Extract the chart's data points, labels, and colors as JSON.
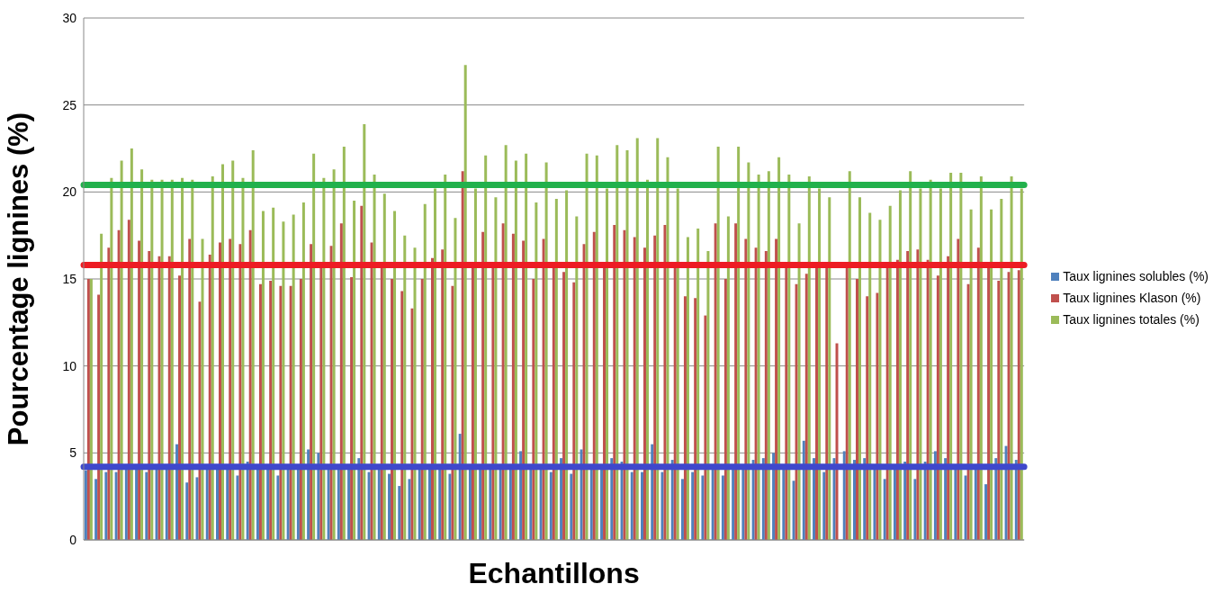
{
  "chart_data": {
    "type": "bar",
    "xlabel": "Echantillons",
    "ylabel": "Pourcentage lignines (%)",
    "categories": [
      null,
      null,
      null,
      null,
      null,
      null,
      null,
      null,
      null,
      null,
      null,
      null,
      null,
      null,
      null,
      null,
      null,
      null,
      null,
      null,
      null,
      null,
      null,
      null,
      null,
      null,
      null,
      null,
      null,
      null,
      null,
      null,
      null,
      null,
      null,
      null,
      null,
      null,
      null,
      null,
      null,
      null,
      null,
      null,
      null,
      null,
      null,
      null,
      null,
      null,
      null,
      null,
      null,
      null,
      null,
      null,
      null,
      null,
      null,
      null,
      null,
      null,
      null,
      null,
      null,
      null,
      null,
      null,
      null,
      null,
      null,
      null,
      null,
      null,
      null,
      null,
      null,
      null,
      null,
      null,
      null,
      null,
      null,
      null,
      null,
      null,
      null,
      null,
      null,
      null,
      null,
      null,
      null
    ],
    "series": [
      {
        "name": "Taux lignines solubles (%)",
        "color": "#4f81bd",
        "values": [
          4.0,
          3.5,
          3.9,
          3.9,
          4.2,
          4.2,
          3.9,
          4.2,
          4.2,
          5.5,
          3.3,
          3.6,
          4.1,
          4.2,
          4.2,
          3.7,
          4.5,
          4.2,
          4.2,
          3.7,
          4.2,
          4.2,
          5.2,
          5.0,
          4.2,
          4.2,
          4.2,
          4.7,
          3.9,
          4.2,
          3.8,
          3.1,
          3.5,
          4.2,
          4.2,
          4.2,
          3.8,
          6.1,
          4.2,
          4.2,
          4.2,
          4.2,
          4.2,
          5.1,
          4.2,
          4.2,
          3.9,
          4.7,
          3.8,
          5.2,
          4.2,
          4.2,
          4.7,
          4.5,
          3.9,
          3.9,
          5.5,
          3.9,
          4.6,
          3.5,
          3.9,
          3.7,
          4.2,
          3.7,
          4.2,
          4.2,
          4.6,
          4.7,
          5.0,
          4.2,
          3.4,
          5.7,
          4.7,
          3.9,
          4.7,
          5.1,
          4.6,
          4.7,
          4.2,
          3.5,
          4.2,
          4.5,
          3.5,
          4.5,
          5.1,
          4.7,
          4.2,
          3.7,
          4.2,
          3.2,
          4.7,
          5.4,
          4.6
        ]
      },
      {
        "name": "Taux lignines Klason (%)",
        "color": "#c0504d",
        "values": [
          15.0,
          14.1,
          16.8,
          17.8,
          18.4,
          17.2,
          16.6,
          16.3,
          16.3,
          15.2,
          17.3,
          13.7,
          16.4,
          17.1,
          17.3,
          17.0,
          17.8,
          14.7,
          14.9,
          14.6,
          14.6,
          15.0,
          17.0,
          15.8,
          16.9,
          18.2,
          15.1,
          19.2,
          17.1,
          15.8,
          15.0,
          14.3,
          13.3,
          15.0,
          16.2,
          16.7,
          14.6,
          21.2,
          15.8,
          17.7,
          15.8,
          18.2,
          17.6,
          17.2,
          15.0,
          17.3,
          15.8,
          15.4,
          14.8,
          17.0,
          17.7,
          15.8,
          18.1,
          17.8,
          17.4,
          16.8,
          17.5,
          18.1,
          15.8,
          14.0,
          13.9,
          12.9,
          18.2,
          15.0,
          18.2,
          17.3,
          16.8,
          16.6,
          17.3,
          15.8,
          14.7,
          15.3,
          15.8,
          15.8,
          11.3,
          15.8,
          15.0,
          14.0,
          14.2,
          15.8,
          16.1,
          16.6,
          16.7,
          16.1,
          15.2,
          16.3,
          17.3,
          14.7,
          16.8,
          15.8,
          14.9,
          15.4,
          15.5
        ]
      },
      {
        "name": "Taux lignines totales (%)",
        "color": "#9bbb59",
        "values": [
          15.0,
          17.6,
          20.8,
          21.8,
          22.5,
          21.3,
          20.7,
          20.7,
          20.7,
          20.8,
          20.7,
          17.3,
          20.9,
          21.6,
          21.8,
          20.8,
          22.4,
          18.9,
          19.1,
          18.3,
          18.7,
          19.4,
          22.2,
          20.8,
          21.3,
          22.6,
          19.5,
          23.9,
          21.0,
          19.9,
          18.9,
          17.5,
          16.8,
          19.3,
          20.2,
          21.0,
          18.5,
          27.3,
          20.2,
          22.1,
          19.7,
          22.7,
          21.8,
          22.2,
          19.4,
          21.7,
          19.6,
          20.1,
          18.6,
          22.2,
          22.1,
          20.2,
          22.7,
          22.4,
          23.1,
          20.7,
          23.1,
          22.0,
          20.2,
          17.4,
          17.9,
          16.6,
          22.6,
          18.6,
          22.6,
          21.7,
          21.0,
          21.2,
          22.0,
          21.0,
          18.2,
          20.9,
          20.2,
          19.7,
          null,
          21.2,
          19.7,
          18.8,
          18.4,
          19.2,
          20.1,
          21.2,
          20.2,
          20.7,
          20.2,
          21.1,
          21.1,
          19.0,
          20.9,
          19.0,
          19.6,
          20.9,
          20.2
        ]
      }
    ],
    "ylim": [
      0,
      30
    ],
    "yticks": [
      0,
      5,
      10,
      15,
      20,
      25,
      30
    ],
    "grid": "y",
    "legend": "right",
    "ref_lines": [
      {
        "axis": "y",
        "value": 4.2,
        "color": "#3f48cc"
      },
      {
        "axis": "y",
        "value": 15.8,
        "color": "#ed1c24"
      },
      {
        "axis": "y",
        "value": 20.4,
        "color": "#22b14c"
      }
    ]
  }
}
